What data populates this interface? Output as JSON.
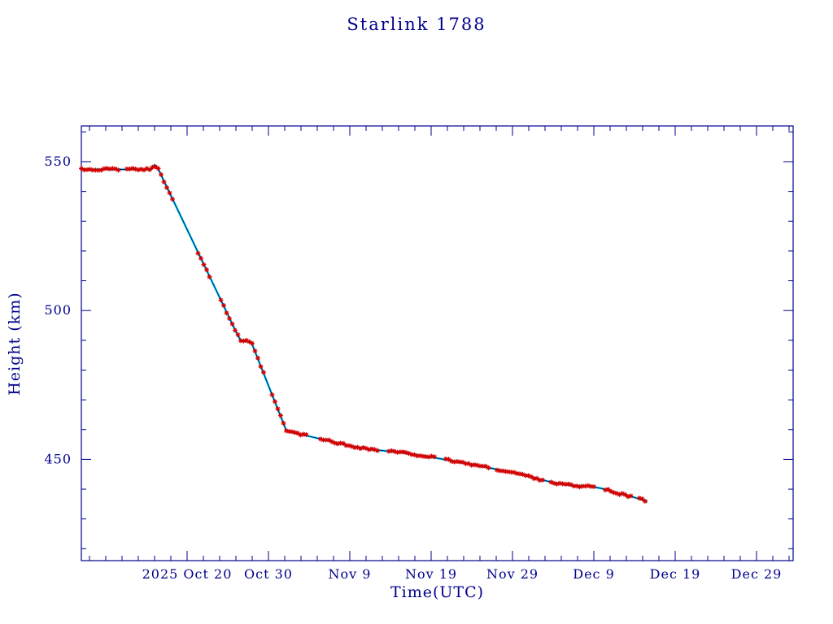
{
  "chart_data": {
    "type": "line",
    "title": "Starlink 1788",
    "xlabel": "Time(UTC)",
    "ylabel": "Height (km)",
    "legend": null,
    "grid": false,
    "x_domain_days": [
      0,
      87.5
    ],
    "x_ticks": [
      {
        "day": 13,
        "label": "2025 Oct 20"
      },
      {
        "day": 23,
        "label": "Oct 30"
      },
      {
        "day": 33,
        "label": "Nov 9"
      },
      {
        "day": 43,
        "label": "Nov 19"
      },
      {
        "day": 53,
        "label": "Nov 29"
      },
      {
        "day": 63,
        "label": "Dec 9"
      },
      {
        "day": 73,
        "label": "Dec 19"
      },
      {
        "day": 83,
        "label": "Dec 29"
      }
    ],
    "x_minor_start": 1,
    "x_minor_step": 2,
    "y_domain": [
      416,
      562
    ],
    "y_ticks": [
      450,
      500,
      550
    ],
    "y_minor_start": 420,
    "y_minor_step": 10,
    "line_points": [
      [
        0.0,
        547.4
      ],
      [
        8.6,
        547.4
      ],
      [
        9.0,
        548.9
      ],
      [
        9.4,
        547.8
      ],
      [
        19.2,
        491.8
      ],
      [
        19.6,
        490.0
      ],
      [
        20.9,
        489.3
      ],
      [
        25.2,
        459.6
      ],
      [
        27.0,
        458.4
      ],
      [
        30.0,
        456.5
      ],
      [
        33.0,
        454.5
      ],
      [
        36.0,
        453.2
      ],
      [
        39.0,
        452.4
      ],
      [
        42.0,
        451.2
      ],
      [
        45.0,
        449.8
      ],
      [
        48.0,
        448.3
      ],
      [
        51.0,
        446.7
      ],
      [
        54.0,
        445.0
      ],
      [
        56.5,
        443.2
      ],
      [
        58.5,
        441.9
      ],
      [
        60.5,
        441.2
      ],
      [
        62.5,
        441.0
      ],
      [
        64.0,
        440.2
      ],
      [
        66.0,
        438.6
      ],
      [
        68.0,
        437.2
      ],
      [
        69.6,
        435.9
      ]
    ],
    "marker_step_days": 0.35,
    "noise_amplitude_km": 0.35,
    "marker_gaps": [
      [
        4.6,
        5.3
      ],
      [
        11.4,
        14.0
      ],
      [
        16.0,
        16.8
      ],
      [
        22.6,
        23.4
      ],
      [
        28.0,
        29.2
      ],
      [
        36.6,
        37.8
      ],
      [
        43.6,
        44.8
      ],
      [
        50.2,
        51.0
      ],
      [
        57.0,
        57.6
      ],
      [
        63.2,
        64.4
      ],
      [
        67.6,
        68.4
      ]
    ],
    "colors": {
      "axis": "#00008b",
      "line": "#00dcdc",
      "thin_line": "#00008b",
      "marker": "#d40000",
      "background": "#ffffff"
    }
  }
}
